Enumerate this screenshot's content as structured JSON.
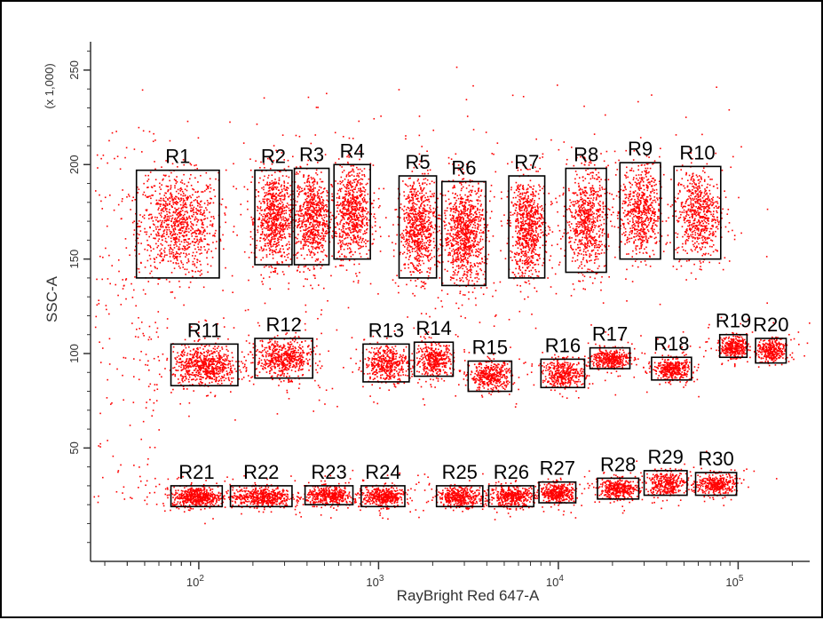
{
  "chart_data": {
    "type": "scatter",
    "xlabel": "RayBright Red 647-A",
    "ylabel": "SSC-A",
    "y_multiplier_label": "(x 1,000)",
    "x_scale": "log",
    "xlim": [
      25,
      250000
    ],
    "ylim": [
      -10,
      265
    ],
    "x_ticks": [
      {
        "value": 100,
        "base": "10",
        "exp": "2"
      },
      {
        "value": 1000,
        "base": "10",
        "exp": "3"
      },
      {
        "value": 10000,
        "base": "10",
        "exp": "4"
      },
      {
        "value": 100000,
        "base": "10",
        "exp": "5"
      }
    ],
    "y_ticks": [
      {
        "value": 50,
        "label": "50"
      },
      {
        "value": 100,
        "label": "100"
      },
      {
        "value": 150,
        "label": "150"
      },
      {
        "value": 200,
        "label": "200"
      },
      {
        "value": 250,
        "label": "250"
      }
    ],
    "point_color": "#ff0000",
    "grid": false,
    "regions": [
      {
        "name": "R1",
        "x_range": [
          45,
          130
        ],
        "y_range": [
          140,
          197
        ],
        "density": 900
      },
      {
        "name": "R2",
        "x_range": [
          205,
          330
        ],
        "y_range": [
          147,
          197
        ],
        "density": 700
      },
      {
        "name": "R3",
        "x_range": [
          340,
          530
        ],
        "y_range": [
          147,
          198
        ],
        "density": 650
      },
      {
        "name": "R4",
        "x_range": [
          565,
          900
        ],
        "y_range": [
          150,
          200
        ],
        "density": 650
      },
      {
        "name": "R5",
        "x_range": [
          1300,
          2100
        ],
        "y_range": [
          140,
          194
        ],
        "density": 700
      },
      {
        "name": "R6",
        "x_range": [
          2250,
          3950
        ],
        "y_range": [
          136,
          191
        ],
        "density": 850
      },
      {
        "name": "R7",
        "x_range": [
          5300,
          8400
        ],
        "y_range": [
          140,
          194
        ],
        "density": 700
      },
      {
        "name": "R8",
        "x_range": [
          11000,
          18500
        ],
        "y_range": [
          143,
          198
        ],
        "density": 650
      },
      {
        "name": "R9",
        "x_range": [
          22000,
          37000
        ],
        "y_range": [
          150,
          201
        ],
        "density": 600
      },
      {
        "name": "R10",
        "x_range": [
          44000,
          80000
        ],
        "y_range": [
          150,
          199
        ],
        "density": 600
      },
      {
        "name": "R11",
        "x_range": [
          70,
          165
        ],
        "y_range": [
          83,
          105
        ],
        "density": 650
      },
      {
        "name": "R12",
        "x_range": [
          205,
          430
        ],
        "y_range": [
          87,
          108
        ],
        "density": 550
      },
      {
        "name": "R13",
        "x_range": [
          820,
          1480
        ],
        "y_range": [
          85,
          105
        ],
        "density": 400
      },
      {
        "name": "R14",
        "x_range": [
          1580,
          2600
        ],
        "y_range": [
          88,
          106
        ],
        "density": 380
      },
      {
        "name": "R15",
        "x_range": [
          3150,
          5500
        ],
        "y_range": [
          80,
          96
        ],
        "density": 380
      },
      {
        "name": "R16",
        "x_range": [
          8000,
          14000
        ],
        "y_range": [
          82,
          97
        ],
        "density": 380
      },
      {
        "name": "R17",
        "x_range": [
          15000,
          25000
        ],
        "y_range": [
          92,
          103
        ],
        "density": 360
      },
      {
        "name": "R18",
        "x_range": [
          33000,
          55000
        ],
        "y_range": [
          86,
          98
        ],
        "density": 360
      },
      {
        "name": "R19",
        "x_range": [
          79000,
          112000
        ],
        "y_range": [
          98,
          110
        ],
        "density": 320
      },
      {
        "name": "R20",
        "x_range": [
          125000,
          185000
        ],
        "y_range": [
          95,
          108
        ],
        "density": 320
      },
      {
        "name": "R21",
        "x_range": [
          70,
          135
        ],
        "y_range": [
          19,
          30
        ],
        "density": 500
      },
      {
        "name": "R22",
        "x_range": [
          150,
          330
        ],
        "y_range": [
          19,
          30
        ],
        "density": 500
      },
      {
        "name": "R23",
        "x_range": [
          390,
          720
        ],
        "y_range": [
          20,
          30
        ],
        "density": 400
      },
      {
        "name": "R24",
        "x_range": [
          800,
          1400
        ],
        "y_range": [
          19,
          30
        ],
        "density": 400
      },
      {
        "name": "R25",
        "x_range": [
          2100,
          3800
        ],
        "y_range": [
          19,
          30
        ],
        "density": 380
      },
      {
        "name": "R26",
        "x_range": [
          4100,
          7300
        ],
        "y_range": [
          19,
          30
        ],
        "density": 380
      },
      {
        "name": "R27",
        "x_range": [
          7800,
          12500
        ],
        "y_range": [
          21,
          32
        ],
        "density": 380
      },
      {
        "name": "R28",
        "x_range": [
          16500,
          28000
        ],
        "y_range": [
          23,
          34
        ],
        "density": 360
      },
      {
        "name": "R29",
        "x_range": [
          30000,
          52000
        ],
        "y_range": [
          25,
          38
        ],
        "density": 340
      },
      {
        "name": "R30",
        "x_range": [
          58000,
          98000
        ],
        "y_range": [
          25,
          37
        ],
        "density": 340
      }
    ]
  }
}
